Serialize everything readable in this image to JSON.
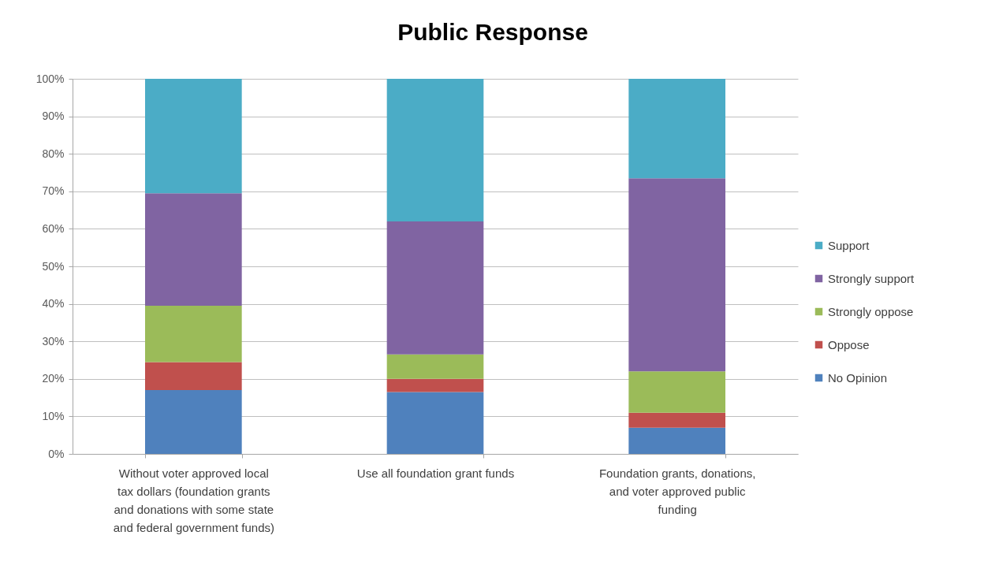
{
  "chart_data": {
    "type": "bar",
    "title": "Public Response",
    "categories": [
      "Without voter approved local tax dollars (foundation grants and donations with some state and federal government funds)",
      "Use all foundation grant funds",
      "Foundation grants, donations, and voter approved public funding"
    ],
    "stacked": true,
    "series": [
      {
        "name": "No Opinion",
        "color": "#4f81bd",
        "values": [
          17,
          16.5,
          7
        ]
      },
      {
        "name": "Oppose",
        "color": "#c0504d",
        "values": [
          7.5,
          3.5,
          4
        ]
      },
      {
        "name": "Strongly oppose",
        "color": "#9bbb59",
        "values": [
          15,
          6.5,
          11
        ]
      },
      {
        "name": "Strongly support",
        "color": "#8064a2",
        "values": [
          30,
          35.5,
          51.5
        ]
      },
      {
        "name": "Support",
        "color": "#4bacc6",
        "values": [
          30.5,
          38,
          26.5
        ]
      }
    ],
    "ylim": [
      0,
      100
    ],
    "yticks": [
      {
        "value": 0,
        "label": "0%"
      },
      {
        "value": 10,
        "label": "10%"
      },
      {
        "value": 20,
        "label": "20%"
      },
      {
        "value": 30,
        "label": "30%"
      },
      {
        "value": 40,
        "label": "40%"
      },
      {
        "value": 50,
        "label": "50%"
      },
      {
        "value": 60,
        "label": "60%"
      },
      {
        "value": 70,
        "label": "70%"
      },
      {
        "value": 80,
        "label": "80%"
      },
      {
        "value": 90,
        "label": "90%"
      },
      {
        "value": 100,
        "label": "100%"
      }
    ],
    "grid": "y",
    "legend": "right"
  }
}
